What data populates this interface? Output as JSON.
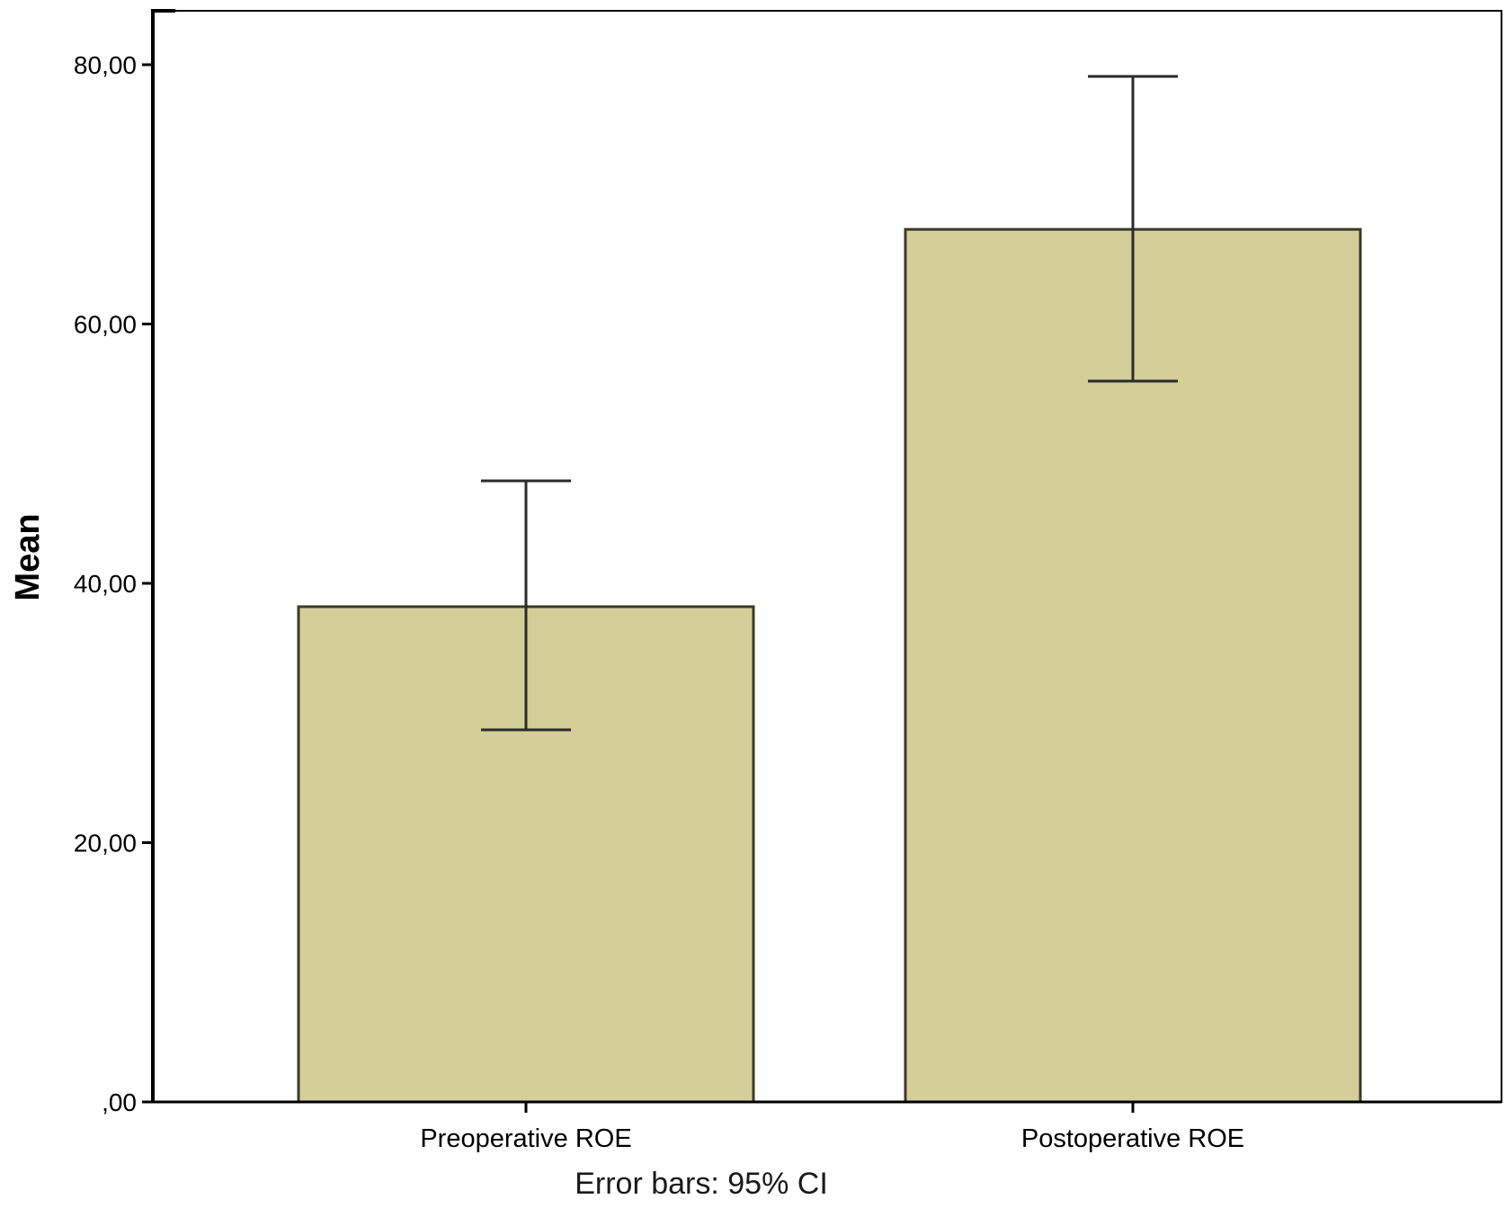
{
  "chart_data": {
    "type": "bar",
    "title": "",
    "xlabel": "",
    "ylabel": "Mean",
    "footnote": "Error bars: 95% CI",
    "categories": [
      "Preoperative ROE",
      "Postoperative ROE"
    ],
    "values": [
      38.2,
      67.3
    ],
    "error_low": [
      28.7,
      55.6
    ],
    "error_high": [
      47.9,
      79.1
    ],
    "ylim": [
      0,
      80
    ],
    "yticks": [
      0,
      20,
      40,
      60,
      80
    ],
    "ytick_labels": [
      ",00",
      "20,00",
      "40,00",
      "60,00",
      "80,00"
    ],
    "grid": false,
    "legend": "none",
    "colors": {
      "bar_fill": "#d4cf99",
      "bar_stroke": "#3a3a2a",
      "error_bar": "#2b2b2b",
      "axis": "#000000"
    }
  }
}
